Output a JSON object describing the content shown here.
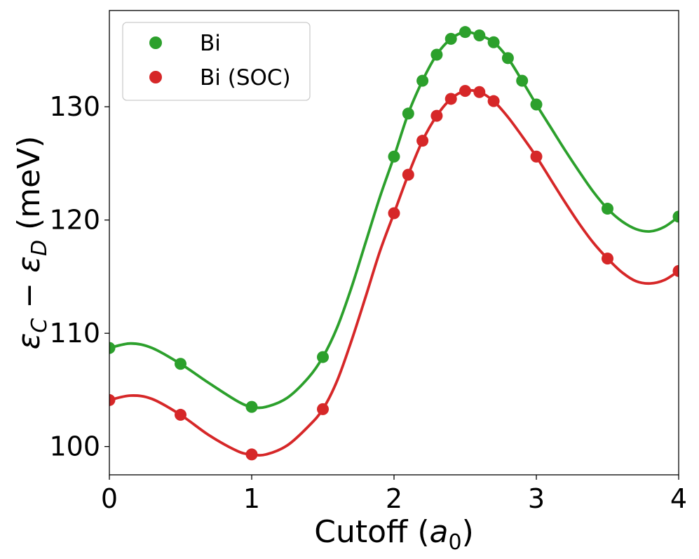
{
  "chart_data": {
    "type": "scatter",
    "title": "",
    "xlabel": "Cutoff (a0)",
    "xlabel_parts": {
      "prefix": "Cutoff (",
      "italic": "a",
      "sub": "0",
      "suffix": ")"
    },
    "ylabel": "εC − εD (meV)",
    "ylabel_parts": {
      "eps1": "ε",
      "sub1": "C",
      "minus": " − ",
      "eps2": "ε",
      "sub2": "D",
      "unit": " (meV)"
    },
    "xlim": [
      0,
      4
    ],
    "ylim": [
      97.5,
      138.5
    ],
    "xticks": [
      0,
      1,
      2,
      3,
      4
    ],
    "xtick_labels": [
      "0",
      "1",
      "2",
      "3",
      "4"
    ],
    "yticks": [
      100,
      110,
      120,
      130
    ],
    "ytick_labels": [
      "100",
      "110",
      "120",
      "130"
    ],
    "grid": false,
    "legend_position": "upper-left",
    "series": [
      {
        "name": "Bi",
        "color": "#2ca02c",
        "points": [
          [
            0,
            108.7
          ],
          [
            0.5,
            107.3
          ],
          [
            1.0,
            103.5
          ],
          [
            1.5,
            107.9
          ],
          [
            2.0,
            125.6
          ],
          [
            2.1,
            129.4
          ],
          [
            2.2,
            132.3
          ],
          [
            2.3,
            134.6
          ],
          [
            2.4,
            136.0
          ],
          [
            2.5,
            136.6
          ],
          [
            2.6,
            136.3
          ],
          [
            2.7,
            135.7
          ],
          [
            2.8,
            134.3
          ],
          [
            2.9,
            132.3
          ],
          [
            3.0,
            130.2
          ],
          [
            3.5,
            121.0
          ],
          [
            4.0,
            120.3
          ]
        ],
        "curve": [
          [
            0,
            108.7
          ],
          [
            0.15,
            109.1
          ],
          [
            0.3,
            108.7
          ],
          [
            0.5,
            107.3
          ],
          [
            0.7,
            105.6
          ],
          [
            0.9,
            104.0
          ],
          [
            1.0,
            103.5
          ],
          [
            1.1,
            103.5
          ],
          [
            1.25,
            104.3
          ],
          [
            1.4,
            106.1
          ],
          [
            1.5,
            107.9
          ],
          [
            1.6,
            110.5
          ],
          [
            1.7,
            114.0
          ],
          [
            1.8,
            118.0
          ],
          [
            1.9,
            122.0
          ],
          [
            2.0,
            125.6
          ],
          [
            2.1,
            129.4
          ],
          [
            2.2,
            132.3
          ],
          [
            2.3,
            134.6
          ],
          [
            2.4,
            136.0
          ],
          [
            2.5,
            136.6
          ],
          [
            2.6,
            136.3
          ],
          [
            2.7,
            135.7
          ],
          [
            2.8,
            134.3
          ],
          [
            2.9,
            132.3
          ],
          [
            3.0,
            130.2
          ],
          [
            3.1,
            128.2
          ],
          [
            3.2,
            126.2
          ],
          [
            3.3,
            124.3
          ],
          [
            3.4,
            122.5
          ],
          [
            3.5,
            121.0
          ],
          [
            3.6,
            119.9
          ],
          [
            3.7,
            119.2
          ],
          [
            3.8,
            119.0
          ],
          [
            3.9,
            119.4
          ],
          [
            4.0,
            120.3
          ]
        ]
      },
      {
        "name": "Bi (SOC)",
        "color": "#d62728",
        "points": [
          [
            0,
            104.1
          ],
          [
            0.5,
            102.8
          ],
          [
            1.0,
            99.3
          ],
          [
            1.5,
            103.3
          ],
          [
            2.0,
            120.6
          ],
          [
            2.1,
            124.0
          ],
          [
            2.2,
            127.0
          ],
          [
            2.3,
            129.2
          ],
          [
            2.4,
            130.7
          ],
          [
            2.5,
            131.4
          ],
          [
            2.6,
            131.3
          ],
          [
            2.7,
            130.5
          ],
          [
            3.0,
            125.6
          ],
          [
            3.5,
            116.6
          ],
          [
            4.0,
            115.5
          ]
        ],
        "curve": [
          [
            0,
            104.1
          ],
          [
            0.15,
            104.5
          ],
          [
            0.3,
            104.2
          ],
          [
            0.5,
            102.8
          ],
          [
            0.7,
            101.0
          ],
          [
            0.9,
            99.6
          ],
          [
            1.0,
            99.3
          ],
          [
            1.1,
            99.3
          ],
          [
            1.25,
            100.1
          ],
          [
            1.4,
            101.8
          ],
          [
            1.5,
            103.3
          ],
          [
            1.6,
            105.8
          ],
          [
            1.7,
            109.3
          ],
          [
            1.8,
            113.2
          ],
          [
            1.9,
            117.2
          ],
          [
            2.0,
            120.6
          ],
          [
            2.1,
            124.0
          ],
          [
            2.2,
            127.0
          ],
          [
            2.3,
            129.2
          ],
          [
            2.4,
            130.7
          ],
          [
            2.5,
            131.4
          ],
          [
            2.6,
            131.3
          ],
          [
            2.7,
            130.5
          ],
          [
            2.8,
            129.1
          ],
          [
            2.9,
            127.4
          ],
          [
            3.0,
            125.6
          ],
          [
            3.1,
            123.6
          ],
          [
            3.2,
            121.6
          ],
          [
            3.3,
            119.7
          ],
          [
            3.4,
            118.0
          ],
          [
            3.5,
            116.6
          ],
          [
            3.6,
            115.4
          ],
          [
            3.7,
            114.6
          ],
          [
            3.8,
            114.4
          ],
          [
            3.9,
            114.7
          ],
          [
            4.0,
            115.5
          ]
        ]
      }
    ]
  }
}
